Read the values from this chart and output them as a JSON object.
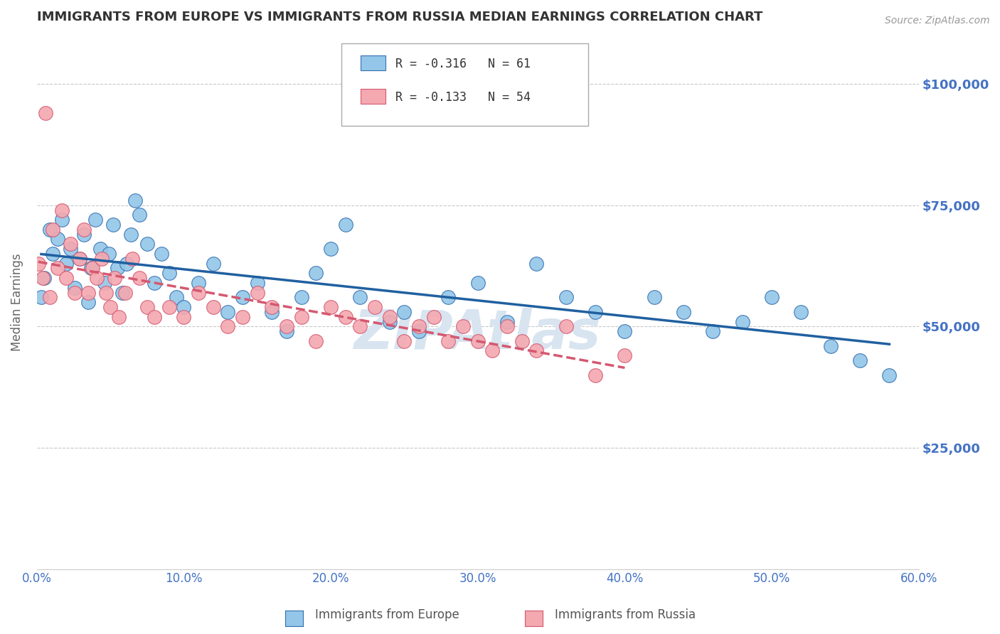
{
  "title": "IMMIGRANTS FROM EUROPE VS IMMIGRANTS FROM RUSSIA MEDIAN EARNINGS CORRELATION CHART",
  "source": "Source: ZipAtlas.com",
  "ylabel": "Median Earnings",
  "ytick_labels": [
    "$25,000",
    "$50,000",
    "$75,000",
    "$100,000"
  ],
  "ytick_values": [
    25000,
    50000,
    75000,
    100000
  ],
  "watermark": "ZIPAtlas",
  "europe": {
    "name": "Immigrants from Europe",
    "color": "#93c6e8",
    "edge_color": "#3470b0",
    "line_color": "#2060a0",
    "R": -0.316,
    "N": 61,
    "x": [
      0.3,
      0.5,
      0.9,
      1.1,
      1.4,
      1.7,
      2.0,
      2.3,
      2.6,
      2.9,
      3.2,
      3.5,
      3.7,
      4.0,
      4.3,
      4.6,
      4.9,
      5.2,
      5.5,
      5.8,
      6.1,
      6.4,
      6.7,
      7.0,
      7.5,
      8.0,
      8.5,
      9.0,
      9.5,
      10.0,
      11.0,
      12.0,
      13.0,
      14.0,
      15.0,
      16.0,
      17.0,
      18.0,
      19.0,
      20.0,
      21.0,
      22.0,
      24.0,
      25.0,
      26.0,
      28.0,
      30.0,
      32.0,
      34.0,
      36.0,
      38.0,
      40.0,
      42.0,
      44.0,
      46.0,
      48.0,
      50.0,
      52.0,
      54.0,
      56.0,
      58.0
    ],
    "y": [
      56000,
      60000,
      70000,
      65000,
      68000,
      72000,
      63000,
      66000,
      58000,
      64000,
      69000,
      55000,
      62000,
      72000,
      66000,
      59000,
      65000,
      71000,
      62000,
      57000,
      63000,
      69000,
      76000,
      73000,
      67000,
      59000,
      65000,
      61000,
      56000,
      54000,
      59000,
      63000,
      53000,
      56000,
      59000,
      53000,
      49000,
      56000,
      61000,
      66000,
      71000,
      56000,
      51000,
      53000,
      49000,
      56000,
      59000,
      51000,
      63000,
      56000,
      53000,
      49000,
      56000,
      53000,
      49000,
      51000,
      56000,
      53000,
      46000,
      43000,
      40000
    ]
  },
  "russia": {
    "name": "Immigrants from Russia",
    "color": "#f4a8b0",
    "edge_color": "#d45870",
    "line_color": "#d45870",
    "R": -0.133,
    "N": 54,
    "x": [
      0.1,
      0.4,
      0.6,
      0.9,
      1.1,
      1.4,
      1.7,
      2.0,
      2.3,
      2.6,
      2.9,
      3.2,
      3.5,
      3.8,
      4.1,
      4.4,
      4.7,
      5.0,
      5.3,
      5.6,
      6.0,
      6.5,
      7.0,
      7.5,
      8.0,
      9.0,
      10.0,
      11.0,
      12.0,
      13.0,
      14.0,
      15.0,
      16.0,
      17.0,
      18.0,
      19.0,
      20.0,
      21.0,
      22.0,
      23.0,
      24.0,
      25.0,
      26.0,
      27.0,
      28.0,
      29.0,
      30.0,
      31.0,
      32.0,
      33.0,
      34.0,
      36.0,
      38.0,
      40.0
    ],
    "y": [
      63000,
      60000,
      94000,
      56000,
      70000,
      62000,
      74000,
      60000,
      67000,
      57000,
      64000,
      70000,
      57000,
      62000,
      60000,
      64000,
      57000,
      54000,
      60000,
      52000,
      57000,
      64000,
      60000,
      54000,
      52000,
      54000,
      52000,
      57000,
      54000,
      50000,
      52000,
      57000,
      54000,
      50000,
      52000,
      47000,
      54000,
      52000,
      50000,
      54000,
      52000,
      47000,
      50000,
      52000,
      47000,
      50000,
      47000,
      45000,
      50000,
      47000,
      45000,
      50000,
      40000,
      44000
    ]
  },
  "xlim": [
    0,
    60
  ],
  "ylim": [
    0,
    110000
  ],
  "background_color": "#ffffff",
  "grid_color": "#c8c8c8",
  "axis_color": "#4472c4",
  "title_color": "#333333",
  "watermark_color": "#d8e4f0",
  "xtick_pct": [
    0.0,
    10.0,
    20.0,
    30.0,
    40.0,
    50.0,
    60.0
  ]
}
